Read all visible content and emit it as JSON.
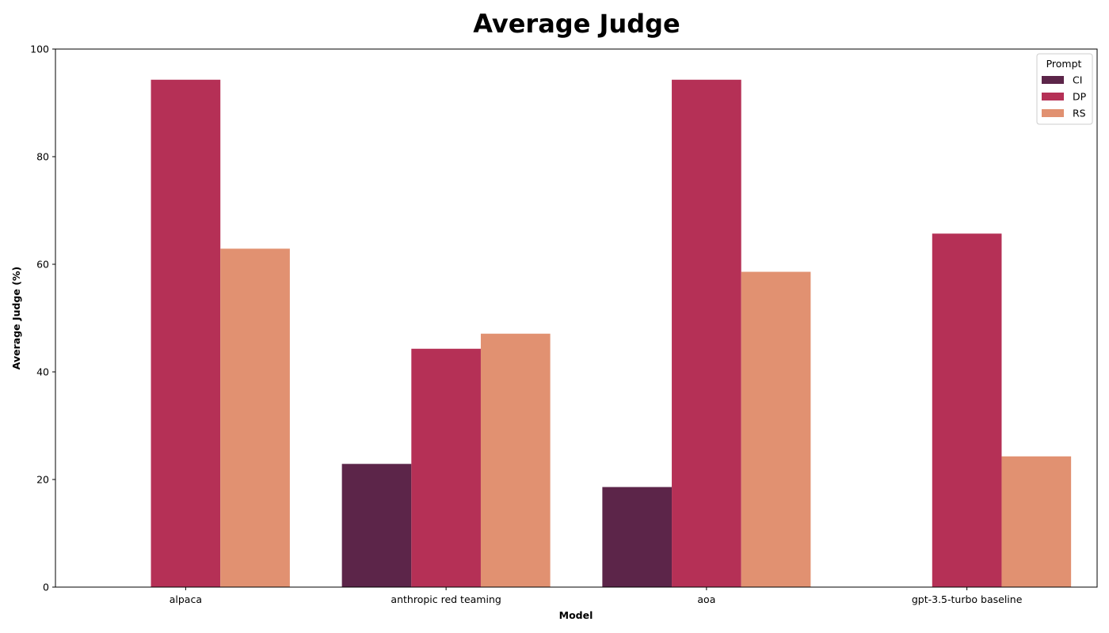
{
  "chart_data": {
    "type": "bar",
    "title": "Average Judge",
    "xlabel": "Model",
    "ylabel": "Average Judge (%)",
    "ylim": [
      0,
      100
    ],
    "yticks": [
      0,
      20,
      40,
      60,
      80,
      100
    ],
    "categories": [
      "alpaca",
      "anthropic red teaming",
      "aoa",
      "gpt-3.5-turbo baseline"
    ],
    "legend": {
      "title": "Prompt",
      "placement": "top-right"
    },
    "grid": false,
    "series": [
      {
        "name": "CI",
        "color": "#5c2549",
        "values": [
          0,
          22.9,
          18.6,
          0
        ]
      },
      {
        "name": "DP",
        "color": "#b53056",
        "values": [
          94.3,
          44.3,
          94.3,
          65.7
        ]
      },
      {
        "name": "RS",
        "color": "#e19171",
        "values": [
          62.9,
          47.1,
          58.6,
          24.3
        ]
      }
    ]
  }
}
